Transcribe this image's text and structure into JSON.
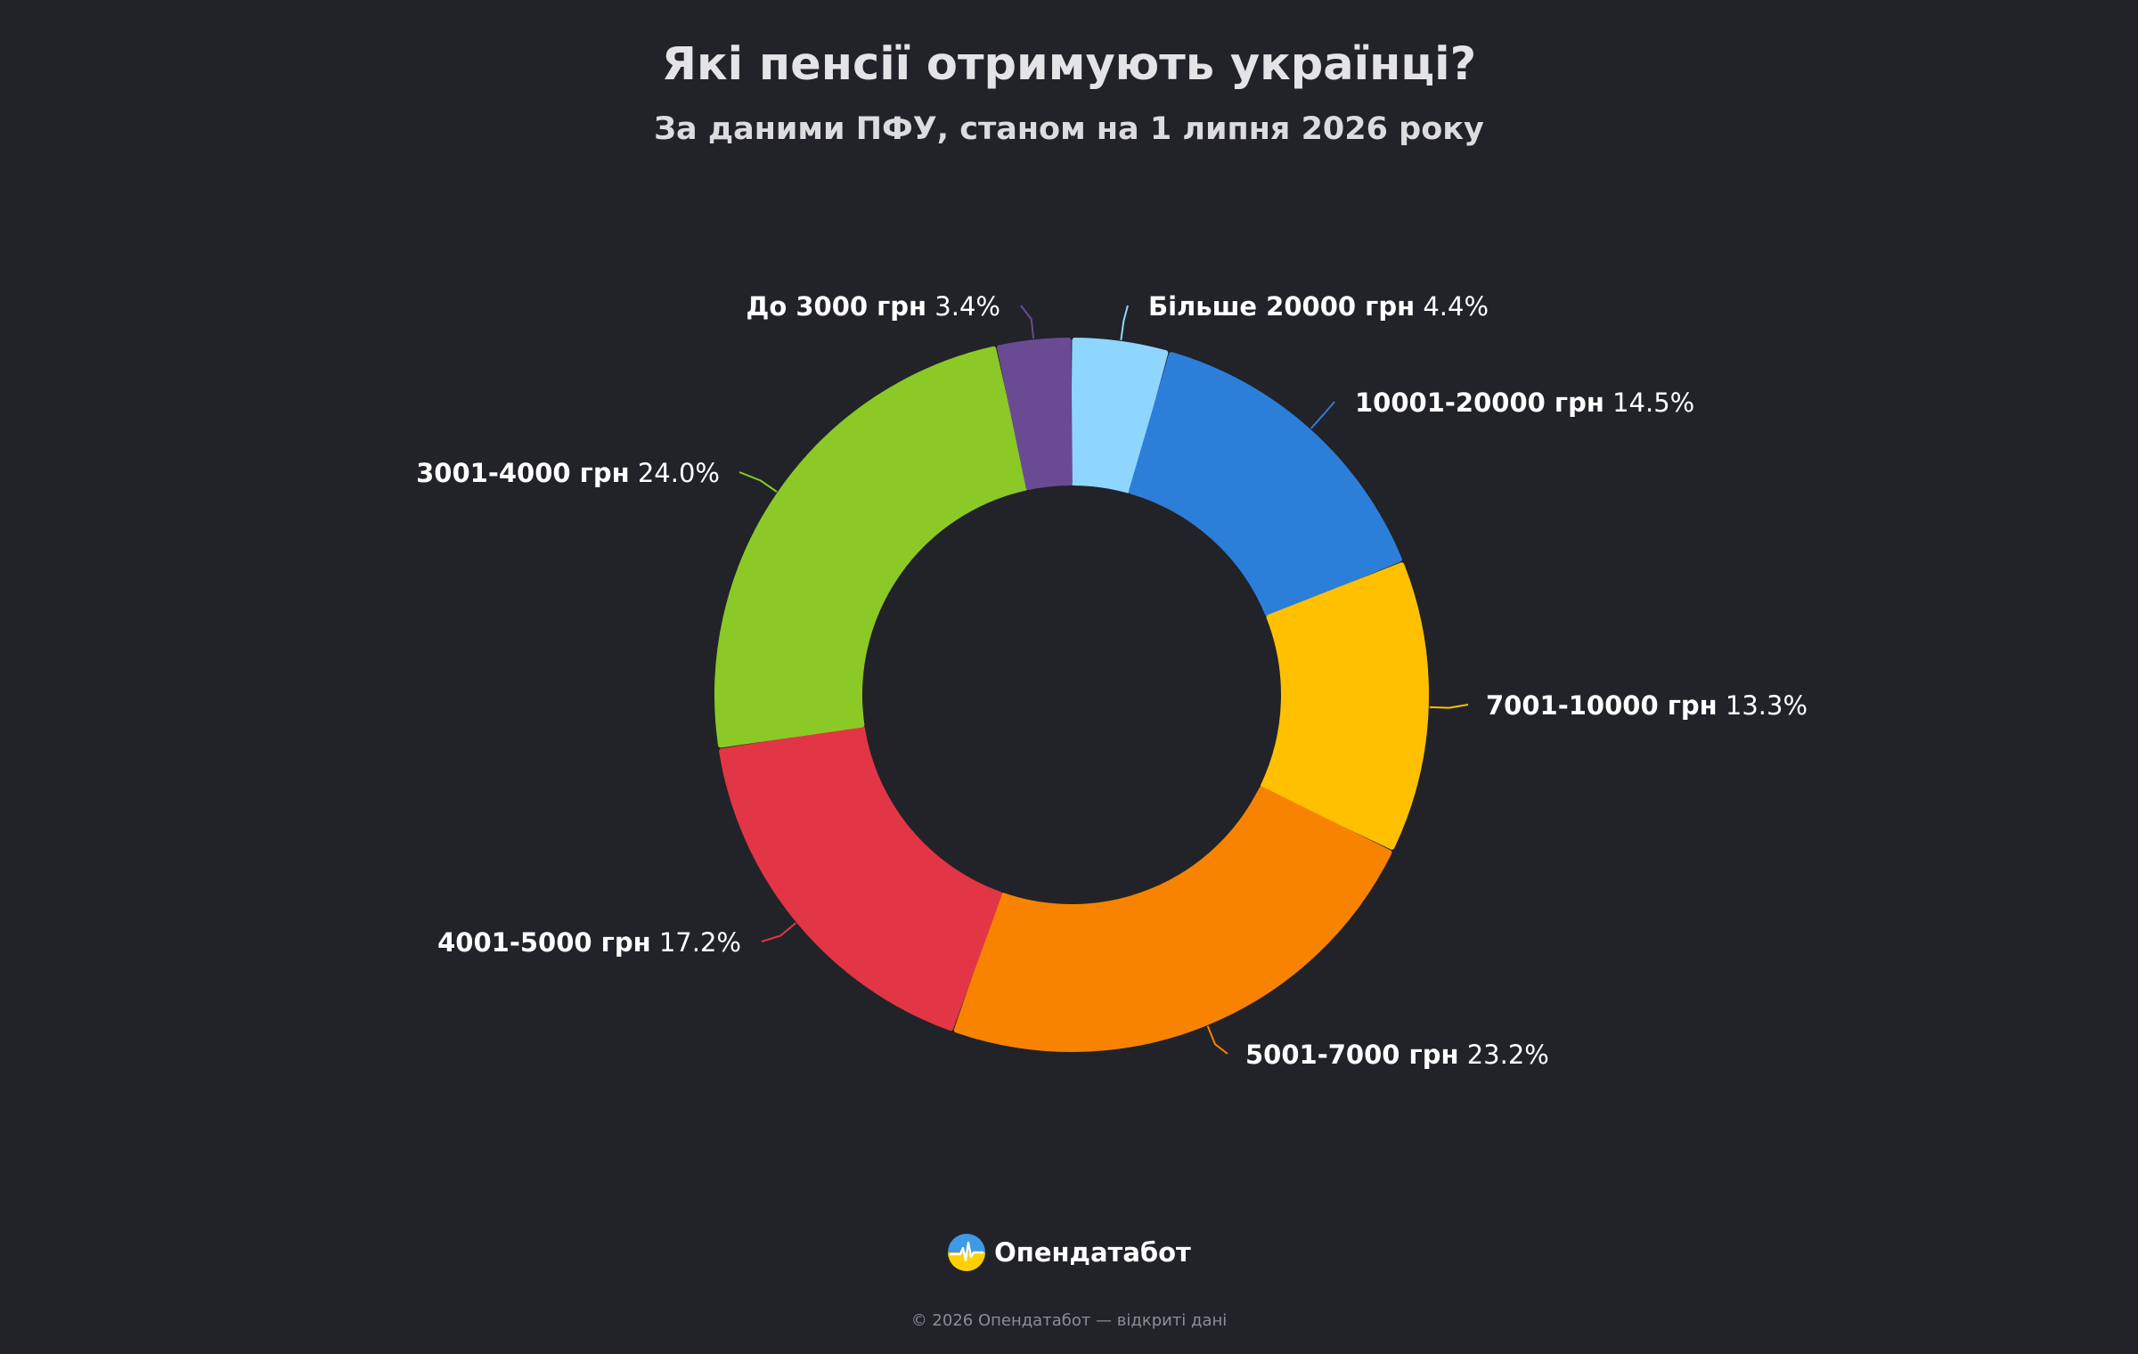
{
  "header": {
    "title": "Які пенсії отримують українці?",
    "subtitle": "За даними ПФУ, станом на 1 липня 2026 року"
  },
  "chart_data": {
    "type": "pie",
    "donut": true,
    "categories": [
      "Більше 20000 грн",
      "10001-20000 грн",
      "7001-10000 грн",
      "5001-7000 грн",
      "4001-5000 грн",
      "3001-4000 грн",
      "До 3000 грн"
    ],
    "values": [
      4.4,
      14.5,
      13.3,
      23.2,
      17.2,
      24.0,
      3.4
    ],
    "value_labels": [
      "4.4%",
      "14.5%",
      "13.3%",
      "23.2%",
      "17.2%",
      "24.0%",
      "3.4%"
    ],
    "unit": "%",
    "colors": [
      "#8fd6ff",
      "#2c7fd9",
      "#ffc000",
      "#f88300",
      "#e23545",
      "#8bc926",
      "#6b4a94"
    ],
    "legend": "labels next to slices"
  },
  "brand": {
    "name": "Опендатабот",
    "logo_icon": "ukraine-flag-heartbeat-icon",
    "logo_colors": [
      "#3e9ae6",
      "#ffd000"
    ]
  },
  "footer": {
    "copyright": "© 2026 Опендатабот — відкриті дані"
  }
}
